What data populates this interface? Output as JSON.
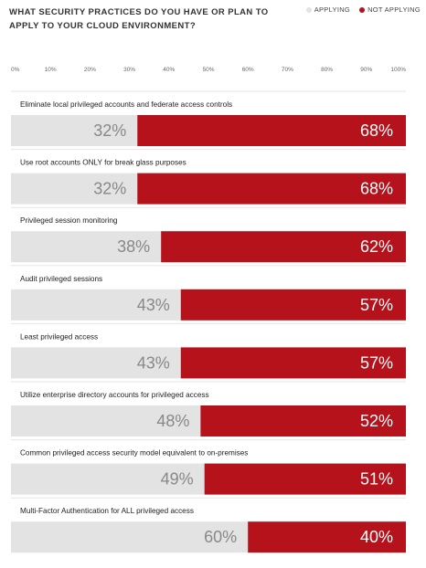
{
  "chart_data": {
    "type": "bar",
    "orientation": "horizontal",
    "stacked": true,
    "title": "WHAT SECURITY PRACTICES DO YOU HAVE OR PLAN TO APPLY TO YOUR CLOUD ENVIRONMENT?",
    "xlim": [
      0,
      100
    ],
    "x_ticks": [
      "0%",
      "10%",
      "20%",
      "30%",
      "40%",
      "50%",
      "60%",
      "70%",
      "80%",
      "90%",
      "100%"
    ],
    "legend_position": "top-right",
    "categories": [
      "Eliminate local privileged accounts and federate access controls",
      "Use root accounts ONLY for break glass purposes",
      "Privileged session monitoring",
      "Audit privileged sessions",
      "Least privileged access",
      "Utilize enterprise directory accounts for privileged access",
      "Common privileged access security model equivalent to on-premises",
      "Multi-Factor Authentication for ALL privileged access"
    ],
    "series": [
      {
        "name": "APPLYING",
        "color": "#e3e3e3",
        "values": [
          32,
          32,
          38,
          43,
          43,
          48,
          49,
          60
        ]
      },
      {
        "name": "NOT APPLYING",
        "color": "#b5121b",
        "values": [
          68,
          68,
          62,
          57,
          57,
          52,
          51,
          40
        ]
      }
    ]
  }
}
